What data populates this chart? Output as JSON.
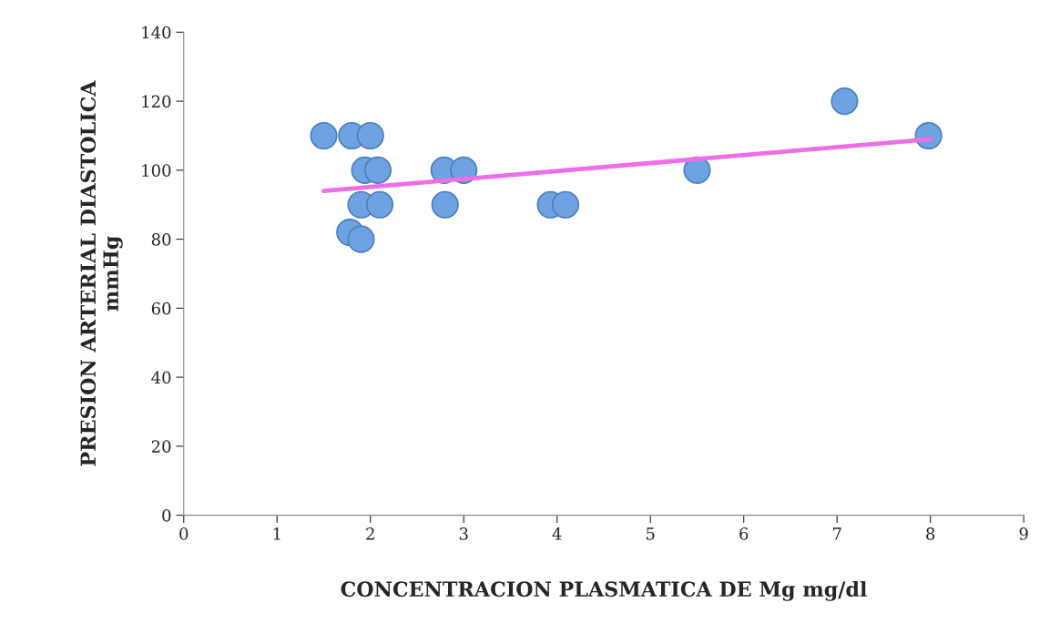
{
  "chart_data": {
    "type": "scatter",
    "xlabel": "CONCENTRACION PLASMATICA DE Mg mg/dl",
    "ylabel": "PRESION ARTERIAL DIASTOLICA\nmmHg",
    "xlim": [
      0,
      9
    ],
    "xticks": [
      0,
      1,
      2,
      3,
      4,
      5,
      6,
      7,
      8,
      9
    ],
    "ylim": [
      0,
      140
    ],
    "yticks": [
      0,
      20,
      40,
      60,
      80,
      100,
      120,
      140
    ],
    "grid": false,
    "marker": "circle",
    "series": [
      {
        "color": "#6fa2e0",
        "x": [
          1.5,
          1.8,
          2.0,
          1.94,
          2.08,
          1.9,
          2.1,
          1.78,
          1.9,
          2.79,
          3.0,
          2.8,
          3.93,
          4.09,
          5.5,
          7.08,
          7.98
        ],
        "values": [
          110,
          110,
          110,
          100,
          100,
          90,
          90,
          82,
          80,
          100,
          100,
          90,
          90,
          90,
          100,
          120,
          110
        ]
      },
      {
        "type": "line",
        "color": "#ee6ee8",
        "marker": "none",
        "line_style": "solid",
        "x": [
          1.5,
          8.0
        ],
        "values": [
          94,
          109
        ]
      }
    ]
  }
}
